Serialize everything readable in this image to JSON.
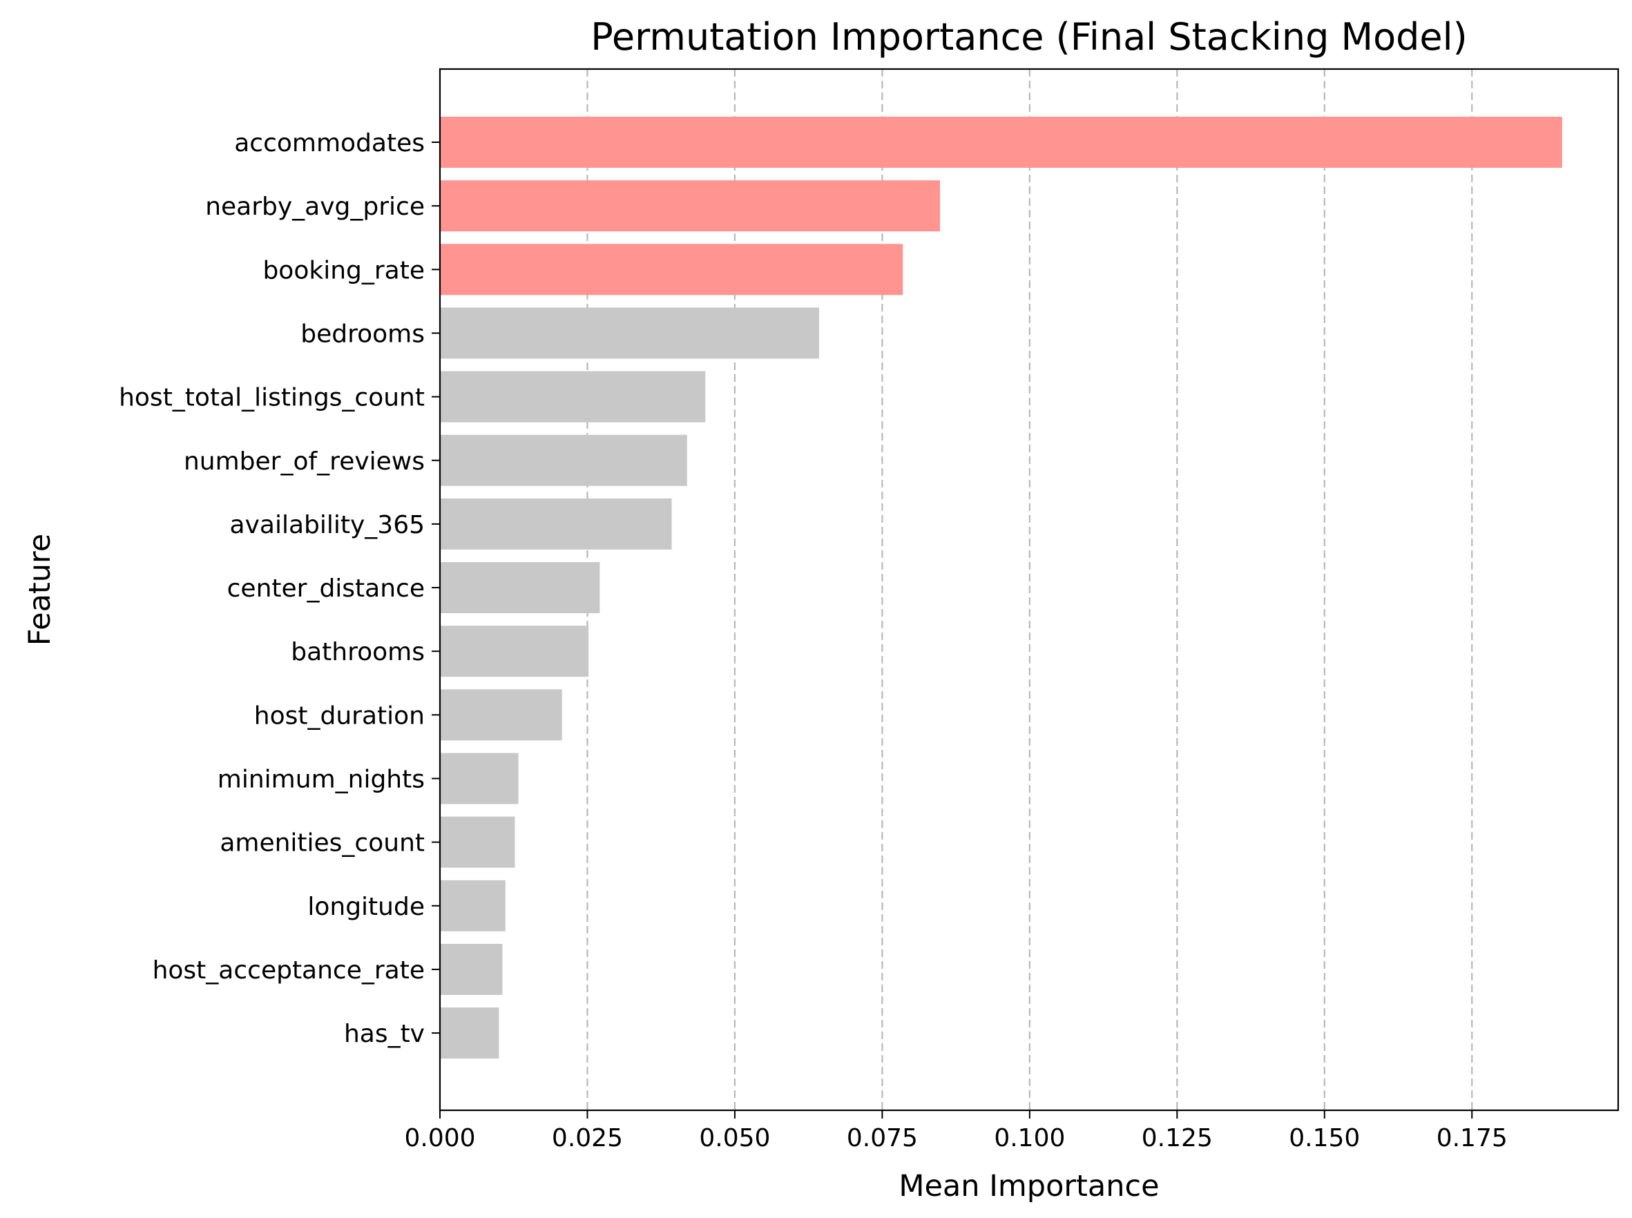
{
  "chart_data": {
    "type": "bar",
    "orientation": "horizontal",
    "title": "Permutation Importance (Final Stacking Model)",
    "xlabel": "Mean Importance",
    "ylabel": "Feature",
    "xlim": [
      0,
      0.1998
    ],
    "xticks": [
      0.0,
      0.025,
      0.05,
      0.075,
      0.1,
      0.125,
      0.15,
      0.175
    ],
    "xtick_labels": [
      "0.000",
      "0.025",
      "0.050",
      "0.075",
      "0.100",
      "0.125",
      "0.150",
      "0.175"
    ],
    "grid": "x-axis, dashed",
    "categories": [
      "accommodates",
      "nearby_avg_price",
      "booking_rate",
      "bedrooms",
      "host_total_listings_count",
      "number_of_reviews",
      "availability_365",
      "center_distance",
      "bathrooms",
      "host_duration",
      "minimum_nights",
      "amenities_count",
      "longitude",
      "host_acceptance_rate",
      "has_tv"
    ],
    "values": [
      0.1903,
      0.0848,
      0.0785,
      0.0643,
      0.045,
      0.0419,
      0.0393,
      0.0271,
      0.0252,
      0.0207,
      0.0133,
      0.0127,
      0.0111,
      0.0106,
      0.01
    ],
    "highlight_top_n": 3,
    "colors": {
      "highlight": "#ff9490",
      "default": "#c8c8c8"
    }
  }
}
